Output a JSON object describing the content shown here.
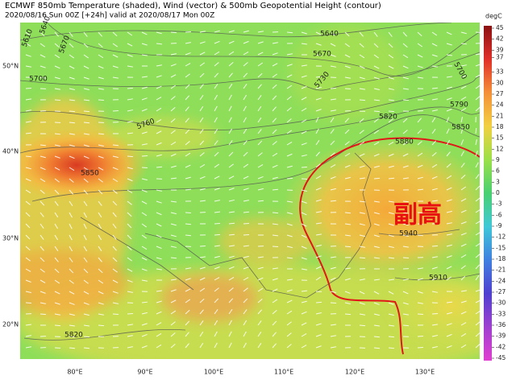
{
  "header": {
    "title": "ECMWF 850mb Temperature (shaded), Wind (vector) & 500mb Geopotential Height (contour)",
    "subtitle": "2020/08/16 Sun 00Z [+24h] valid at 2020/08/17 Mon 00Z"
  },
  "map": {
    "lat_labels": [
      "50°N",
      "40°N",
      "30°N",
      "20°N"
    ],
    "lon_labels": [
      "80°E",
      "90°E",
      "100°E",
      "110°E",
      "120°E",
      "130°E"
    ],
    "contour_labels": [
      "5610",
      "5640",
      "5670",
      "5700",
      "5640",
      "5670",
      "5700",
      "5730",
      "5790",
      "5760",
      "5820",
      "5850",
      "5880",
      "5850",
      "5940",
      "5910",
      "5820"
    ],
    "annotation": "副高"
  },
  "colorbar": {
    "unit": "degC",
    "ticks": [
      45,
      42,
      39,
      37,
      33,
      30,
      27,
      24,
      21,
      18,
      15,
      12,
      9,
      6,
      3,
      0,
      -3,
      -6,
      -9,
      -12,
      -15,
      -18,
      -21,
      -24,
      -27,
      -30,
      -33,
      -36,
      -39,
      -42,
      -45
    ]
  }
}
